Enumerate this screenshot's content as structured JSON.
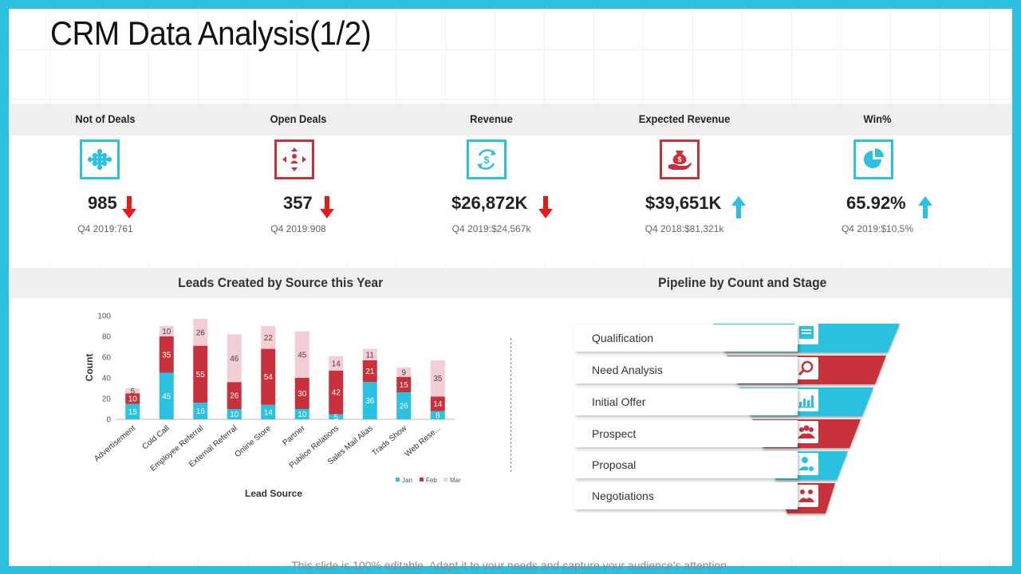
{
  "title": "CRM Data Analysis(1/2)",
  "footer": "This slide is 100% editable. Adapt it to your needs and capture your audience's attention.",
  "colors": {
    "accent": "#2cc1e1",
    "red": "#c8313b",
    "pink": "#f3cfd3",
    "up": "#2cc1e1",
    "down": "#e51a1a"
  },
  "kpis": [
    {
      "label": "Not of Deals",
      "value": "985",
      "sub": "Q4 2019:761",
      "trend": "down",
      "icon": "network-icon",
      "color": "#2cc1e1"
    },
    {
      "label": "Open Deals",
      "value": "357",
      "sub": "Q4 2019:908",
      "trend": "down",
      "icon": "directions-icon",
      "color": "#c8313b"
    },
    {
      "label": "Revenue",
      "value": "$26,872K",
      "sub": "Q4 2019:$24,567k",
      "trend": "down",
      "icon": "dollar-cycle-icon",
      "color": "#2cc1e1"
    },
    {
      "label": "Expected Revenue",
      "value": "$39,651K",
      "sub": "Q4 2018:$81,321k",
      "trend": "up",
      "icon": "money-hand-icon",
      "color": "#c8313b"
    },
    {
      "label": "Win%",
      "value": "65.92%",
      "sub": "Q4 2019:$10,5%",
      "trend": "up",
      "icon": "pie-chart-icon",
      "color": "#2cc1e1"
    }
  ],
  "leads_title": "Leads Created by Source this Year",
  "pipeline_title": "Pipeline by Count and Stage",
  "chart_data": {
    "type": "bar",
    "stacked": true,
    "title": "Leads Created by Source this Year",
    "xlabel": "Lead Source",
    "ylabel": "Count",
    "ylim": [
      0,
      100
    ],
    "yticks": [
      0,
      20,
      40,
      60,
      80,
      100
    ],
    "categories": [
      "Advertisement",
      "Cold Call",
      "Employee Referral",
      "External Referral",
      "Online Store",
      "Partner",
      "Publice Relations",
      "Sales Mail Alias",
      "Trads Show",
      "Web Rese..."
    ],
    "series": [
      {
        "name": "Jan",
        "color": "#2cc1e1",
        "values": [
          15,
          45,
          16,
          10,
          14,
          10,
          5,
          36,
          26,
          8
        ]
      },
      {
        "name": "Feb",
        "color": "#c8313b",
        "values": [
          10,
          35,
          55,
          26,
          54,
          30,
          42,
          21,
          15,
          14
        ]
      },
      {
        "name": "Mar",
        "color": "#f3cfd3",
        "values": [
          5,
          10,
          26,
          46,
          22,
          45,
          14,
          11,
          9,
          35
        ]
      }
    ],
    "legend_position": "bottom-right"
  },
  "pipeline": {
    "stages": [
      {
        "label": "Qualification",
        "icon": "document-icon",
        "color": "#2cc1e1"
      },
      {
        "label": "Need Analysis",
        "icon": "magnifier-chart-icon",
        "color": "#c8313b"
      },
      {
        "label": "Initial Offer",
        "icon": "bar-chart-icon",
        "color": "#2cc1e1"
      },
      {
        "label": "Prospect",
        "icon": "group-icon",
        "color": "#c8313b"
      },
      {
        "label": "Proposal",
        "icon": "user-check-icon",
        "color": "#2cc1e1"
      },
      {
        "label": "Negotiations",
        "icon": "handshake-icon",
        "color": "#c8313b"
      }
    ]
  }
}
